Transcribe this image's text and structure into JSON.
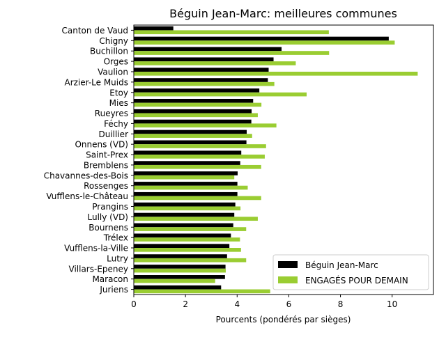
{
  "chart_data": {
    "type": "bar",
    "orientation": "horizontal",
    "title": "Béguin Jean-Marc: meilleures communes",
    "xlabel": "Pourcents (pondérés par sièges)",
    "ylabel": "",
    "xlim": [
      0,
      11.6
    ],
    "xticks": [
      0,
      2,
      4,
      6,
      8,
      10
    ],
    "grid": false,
    "legend_position": "lower-right",
    "categories": [
      "Canton de Vaud",
      "Chigny",
      "Buchillon",
      "Orges",
      "Vaulion",
      "Arzier-Le Muids",
      "Etoy",
      "Mies",
      "Rueyres",
      "Féchy",
      "Duillier",
      "Onnens (VD)",
      "Saint-Prex",
      "Bremblens",
      "Chavannes-des-Bois",
      "Rossenges",
      "Vufflens-le-Château",
      "Prangins",
      "Lully (VD)",
      "Bournens",
      "Trélex",
      "Vufflens-la-Ville",
      "Lutry",
      "Villars-Epeney",
      "Maracon",
      "Juriens"
    ],
    "series": [
      {
        "name": "Béguin Jean-Marc",
        "color": "#000000",
        "values": [
          1.53,
          9.87,
          5.72,
          5.41,
          5.22,
          5.19,
          4.86,
          4.62,
          4.56,
          4.55,
          4.37,
          4.36,
          4.16,
          4.12,
          4.02,
          4.01,
          4.01,
          3.93,
          3.89,
          3.85,
          3.76,
          3.7,
          3.61,
          3.55,
          3.53,
          3.38
        ]
      },
      {
        "name": "ENGAGÉS POUR DEMAIN",
        "color": "#9acd32",
        "values": [
          7.55,
          10.1,
          7.56,
          6.27,
          10.99,
          5.44,
          6.69,
          4.94,
          4.8,
          5.52,
          4.58,
          5.12,
          5.07,
          4.93,
          3.89,
          4.41,
          4.93,
          4.13,
          4.8,
          4.35,
          4.11,
          4.15,
          4.35,
          3.56,
          3.15,
          5.28
        ]
      }
    ]
  }
}
